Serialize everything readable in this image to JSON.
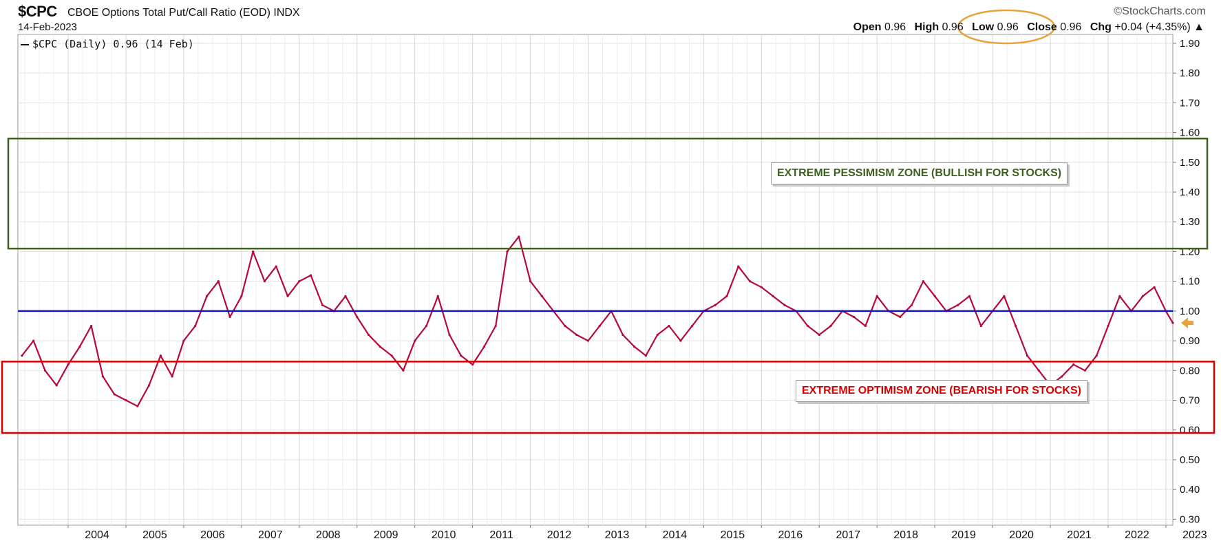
{
  "header": {
    "symbol": "$CPC",
    "title": "CBOE Options Total Put/Call Ratio (EOD)",
    "exchange": "INDX",
    "date": "14-Feb-2023",
    "brand": "©StockCharts.com",
    "open_label": "Open",
    "open_value": "0.96",
    "high_label": "High",
    "high_value": "0.96",
    "low_label": "Low",
    "low_value": "0.96",
    "close_label": "Close",
    "close_value": "0.96",
    "chg_label": "Chg",
    "chg_value": "+0.04 (+4.35%)",
    "chg_arrow": "▲"
  },
  "legend": {
    "text": "$CPC (Daily) 0.96 (14 Feb)"
  },
  "zones": {
    "pessimism_label": "EXTREME PESSIMISM ZONE (BULLISH FOR STOCKS)",
    "optimism_label": "EXTREME OPTIMISM ZONE (BEARISH FOR STOCKS)"
  },
  "colors": {
    "series": "#b5093a",
    "reference_line": "#1515c8",
    "pessimism_zone": "#3d5f1f",
    "optimism_zone": "#d40000",
    "close_highlight": "#e8a23a",
    "last_value_arrow": "#e8a23a"
  },
  "chart_data": {
    "type": "line",
    "title": "CBOE Options Total Put/Call Ratio (EOD)",
    "xlabel": "",
    "ylabel": "",
    "ylim": [
      0.28,
      1.93
    ],
    "y_ticks": [
      "0.30",
      "0.40",
      "0.50",
      "0.60",
      "0.70",
      "0.80",
      "0.90",
      "1.00",
      "1.10",
      "1.20",
      "1.30",
      "1.40",
      "1.50",
      "1.60",
      "1.70",
      "1.80",
      "1.90"
    ],
    "x_ticks": [
      "2004",
      "2005",
      "2006",
      "2007",
      "2008",
      "2009",
      "2010",
      "2011",
      "2012",
      "2013",
      "2014",
      "2015",
      "2016",
      "2017",
      "2018",
      "2019",
      "2020",
      "2021",
      "2022",
      "2023"
    ],
    "x_range": [
      2003.13,
      2023.12
    ],
    "grid": true,
    "legend_position": "top-left",
    "reference_line": 1.0,
    "zones": [
      {
        "name": "EXTREME PESSIMISM ZONE (BULLISH FOR STOCKS)",
        "ymin": 1.21,
        "ymax": 1.58
      },
      {
        "name": "EXTREME OPTIMISM ZONE (BEARISH FOR STOCKS)",
        "ymin": 0.59,
        "ymax": 0.83
      }
    ],
    "last_value": 0.96,
    "series": [
      {
        "name": "$CPC (Daily)",
        "x": [
          2003.2,
          2003.4,
          2003.6,
          2003.8,
          2004.0,
          2004.2,
          2004.4,
          2004.6,
          2004.8,
          2005.0,
          2005.2,
          2005.4,
          2005.6,
          2005.8,
          2006.0,
          2006.2,
          2006.4,
          2006.6,
          2006.8,
          2007.0,
          2007.2,
          2007.4,
          2007.6,
          2007.8,
          2008.0,
          2008.2,
          2008.4,
          2008.6,
          2008.8,
          2009.0,
          2009.2,
          2009.4,
          2009.6,
          2009.8,
          2010.0,
          2010.2,
          2010.4,
          2010.6,
          2010.8,
          2011.0,
          2011.2,
          2011.4,
          2011.6,
          2011.8,
          2012.0,
          2012.2,
          2012.4,
          2012.6,
          2012.8,
          2013.0,
          2013.2,
          2013.4,
          2013.6,
          2013.8,
          2014.0,
          2014.2,
          2014.4,
          2014.6,
          2014.8,
          2015.0,
          2015.2,
          2015.4,
          2015.6,
          2015.8,
          2016.0,
          2016.2,
          2016.4,
          2016.6,
          2016.8,
          2017.0,
          2017.2,
          2017.4,
          2017.6,
          2017.8,
          2018.0,
          2018.2,
          2018.4,
          2018.6,
          2018.8,
          2019.0,
          2019.2,
          2019.4,
          2019.6,
          2019.8,
          2020.0,
          2020.2,
          2020.4,
          2020.6,
          2020.8,
          2021.0,
          2021.2,
          2021.4,
          2021.6,
          2021.8,
          2022.0,
          2022.2,
          2022.4,
          2022.6,
          2022.8,
          2023.0,
          2023.12
        ],
        "values": [
          0.85,
          0.9,
          0.8,
          0.75,
          0.82,
          0.88,
          0.95,
          0.78,
          0.72,
          0.7,
          0.68,
          0.75,
          0.85,
          0.78,
          0.9,
          0.95,
          1.05,
          1.1,
          0.98,
          1.05,
          1.2,
          1.1,
          1.15,
          1.05,
          1.1,
          1.12,
          1.02,
          1.0,
          1.05,
          0.98,
          0.92,
          0.88,
          0.85,
          0.8,
          0.9,
          0.95,
          1.05,
          0.92,
          0.85,
          0.82,
          0.88,
          0.95,
          1.2,
          1.25,
          1.1,
          1.05,
          1.0,
          0.95,
          0.92,
          0.9,
          0.95,
          1.0,
          0.92,
          0.88,
          0.85,
          0.92,
          0.95,
          0.9,
          0.95,
          1.0,
          1.02,
          1.05,
          1.15,
          1.1,
          1.08,
          1.05,
          1.02,
          1.0,
          0.95,
          0.92,
          0.95,
          1.0,
          0.98,
          0.95,
          1.05,
          1.0,
          0.98,
          1.02,
          1.1,
          1.05,
          1.0,
          1.02,
          1.05,
          0.95,
          1.0,
          1.05,
          0.95,
          0.85,
          0.8,
          0.75,
          0.78,
          0.82,
          0.8,
          0.85,
          0.95,
          1.05,
          1.0,
          1.05,
          1.08,
          1.0,
          0.96
        ]
      }
    ]
  }
}
